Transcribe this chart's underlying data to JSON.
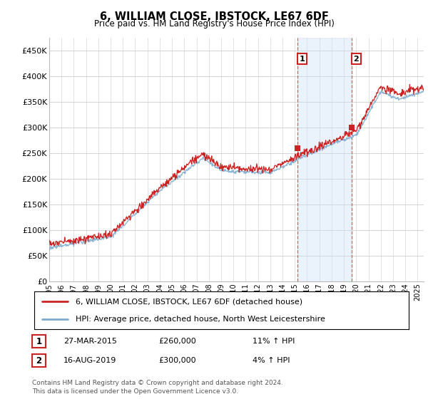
{
  "title": "6, WILLIAM CLOSE, IBSTOCK, LE67 6DF",
  "subtitle": "Price paid vs. HM Land Registry's House Price Index (HPI)",
  "yticks": [
    0,
    50000,
    100000,
    150000,
    200000,
    250000,
    300000,
    350000,
    400000,
    450000
  ],
  "ytick_labels": [
    "£0",
    "£50K",
    "£100K",
    "£150K",
    "£200K",
    "£250K",
    "£300K",
    "£350K",
    "£400K",
    "£450K"
  ],
  "xlim_start": 1995.0,
  "xlim_end": 2025.5,
  "ylim": [
    0,
    475000
  ],
  "background_color": "#ffffff",
  "plot_bg_color": "#ffffff",
  "grid_color": "#cccccc",
  "sale1_x": 2015.23,
  "sale1_y": 260000,
  "sale2_x": 2019.62,
  "sale2_y": 300000,
  "shaded_color": "#cce0f5",
  "shaded_alpha": 0.4,
  "vline_color": "#dd4444",
  "vline_style": "--",
  "red_line_color": "#cc2222",
  "blue_line_color": "#7aaad0",
  "legend_label1": "6, WILLIAM CLOSE, IBSTOCK, LE67 6DF (detached house)",
  "legend_label2": "HPI: Average price, detached house, North West Leicestershire",
  "footnote": "Contains HM Land Registry data © Crown copyright and database right 2024.\nThis data is licensed under the Open Government Licence v3.0.",
  "table_rows": [
    {
      "num": "1",
      "date": "27-MAR-2015",
      "price": "£260,000",
      "hpi": "11% ↑ HPI"
    },
    {
      "num": "2",
      "date": "16-AUG-2019",
      "price": "£300,000",
      "hpi": "4% ↑ HPI"
    }
  ]
}
